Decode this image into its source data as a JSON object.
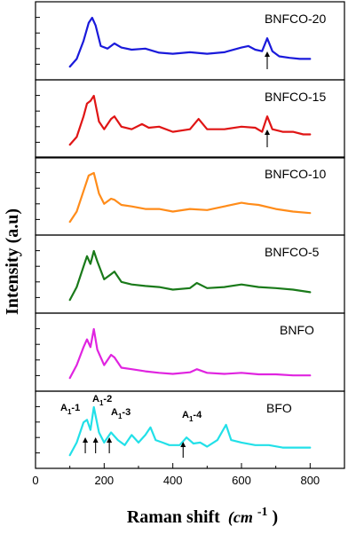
{
  "chart_data": {
    "type": "line",
    "layout": "stacked-panels",
    "xlabel": "Raman shift",
    "xlabel_unit": "(cm",
    "xlabel_exp": "-1",
    "xlabel_close": ")",
    "ylabel": "Intensity (a.u)",
    "xlim": [
      0,
      900
    ],
    "xticks": [
      0,
      200,
      400,
      600,
      800
    ],
    "series": [
      {
        "name": "BNFCO-20",
        "color": "#1a1adb",
        "x": [
          100,
          120,
          140,
          155,
          165,
          175,
          190,
          210,
          230,
          250,
          280,
          320,
          360,
          400,
          450,
          500,
          550,
          600,
          620,
          640,
          660,
          675,
          690,
          710,
          740,
          770,
          800
        ],
        "y": [
          0.05,
          0.2,
          0.55,
          0.9,
          1.0,
          0.85,
          0.45,
          0.4,
          0.5,
          0.42,
          0.38,
          0.4,
          0.32,
          0.3,
          0.33,
          0.3,
          0.33,
          0.42,
          0.45,
          0.38,
          0.35,
          0.6,
          0.35,
          0.25,
          0.22,
          0.2,
          0.2
        ],
        "annotations": [
          {
            "x": 675,
            "label": ""
          }
        ]
      },
      {
        "name": "BNFCO-15",
        "color": "#e01515",
        "x": [
          100,
          120,
          140,
          150,
          160,
          170,
          185,
          200,
          220,
          230,
          250,
          280,
          310,
          330,
          360,
          400,
          450,
          475,
          500,
          550,
          600,
          640,
          660,
          675,
          690,
          720,
          750,
          780,
          800
        ],
        "y": [
          0.05,
          0.2,
          0.6,
          0.85,
          0.9,
          1.0,
          0.5,
          0.35,
          0.55,
          0.6,
          0.4,
          0.35,
          0.45,
          0.38,
          0.4,
          0.3,
          0.35,
          0.55,
          0.35,
          0.35,
          0.4,
          0.38,
          0.3,
          0.6,
          0.35,
          0.3,
          0.3,
          0.25,
          0.25
        ],
        "annotations": [
          {
            "x": 675,
            "label": ""
          }
        ]
      },
      {
        "name": "BNFCO-10",
        "color": "#ff8c1a",
        "x": [
          100,
          120,
          140,
          155,
          170,
          185,
          200,
          220,
          230,
          250,
          280,
          320,
          360,
          400,
          450,
          500,
          550,
          600,
          620,
          650,
          700,
          750,
          800
        ],
        "y": [
          0.05,
          0.25,
          0.65,
          0.95,
          1.0,
          0.6,
          0.4,
          0.5,
          0.48,
          0.38,
          0.35,
          0.3,
          0.3,
          0.25,
          0.3,
          0.28,
          0.35,
          0.42,
          0.4,
          0.38,
          0.3,
          0.25,
          0.22
        ]
      },
      {
        "name": "BNFCO-5",
        "color": "#1a7a1a",
        "x": [
          100,
          120,
          140,
          150,
          160,
          170,
          180,
          200,
          220,
          230,
          250,
          280,
          320,
          360,
          400,
          450,
          470,
          500,
          550,
          600,
          650,
          700,
          750,
          800
        ],
        "y": [
          0.05,
          0.3,
          0.7,
          0.9,
          0.75,
          1.0,
          0.8,
          0.45,
          0.55,
          0.6,
          0.4,
          0.35,
          0.32,
          0.3,
          0.25,
          0.28,
          0.38,
          0.28,
          0.3,
          0.35,
          0.3,
          0.28,
          0.25,
          0.2
        ]
      },
      {
        "name": "BNFO",
        "color": "#e024e0",
        "x": [
          100,
          120,
          140,
          150,
          160,
          170,
          180,
          200,
          220,
          230,
          250,
          280,
          320,
          360,
          400,
          450,
          470,
          500,
          550,
          600,
          650,
          700,
          750,
          800
        ],
        "y": [
          0.05,
          0.3,
          0.65,
          0.8,
          0.65,
          1.0,
          0.6,
          0.3,
          0.5,
          0.45,
          0.25,
          0.22,
          0.18,
          0.15,
          0.13,
          0.16,
          0.22,
          0.15,
          0.13,
          0.15,
          0.12,
          0.12,
          0.1,
          0.1
        ]
      },
      {
        "name": "BFO",
        "color": "#22e0e8",
        "x": [
          100,
          120,
          140,
          150,
          160,
          170,
          185,
          200,
          220,
          240,
          260,
          280,
          300,
          320,
          335,
          350,
          370,
          390,
          420,
          440,
          460,
          480,
          500,
          530,
          555,
          570,
          600,
          640,
          680,
          720,
          760,
          800
        ],
        "y": [
          0.05,
          0.3,
          0.7,
          0.75,
          0.55,
          1.0,
          0.5,
          0.3,
          0.5,
          0.35,
          0.25,
          0.45,
          0.3,
          0.45,
          0.6,
          0.35,
          0.3,
          0.25,
          0.25,
          0.4,
          0.28,
          0.3,
          0.22,
          0.35,
          0.65,
          0.35,
          0.3,
          0.25,
          0.25,
          0.2,
          0.2,
          0.2
        ],
        "annotations": [
          {
            "x": 145,
            "label": "A",
            "sub": "1",
            "suffix": "-1"
          },
          {
            "x": 175,
            "label": "A",
            "sub": "1",
            "suffix": "-2"
          },
          {
            "x": 215,
            "label": "A",
            "sub": "1",
            "suffix": "-3"
          },
          {
            "x": 430,
            "label": "A",
            "sub": "1",
            "suffix": "-4"
          }
        ]
      }
    ]
  }
}
